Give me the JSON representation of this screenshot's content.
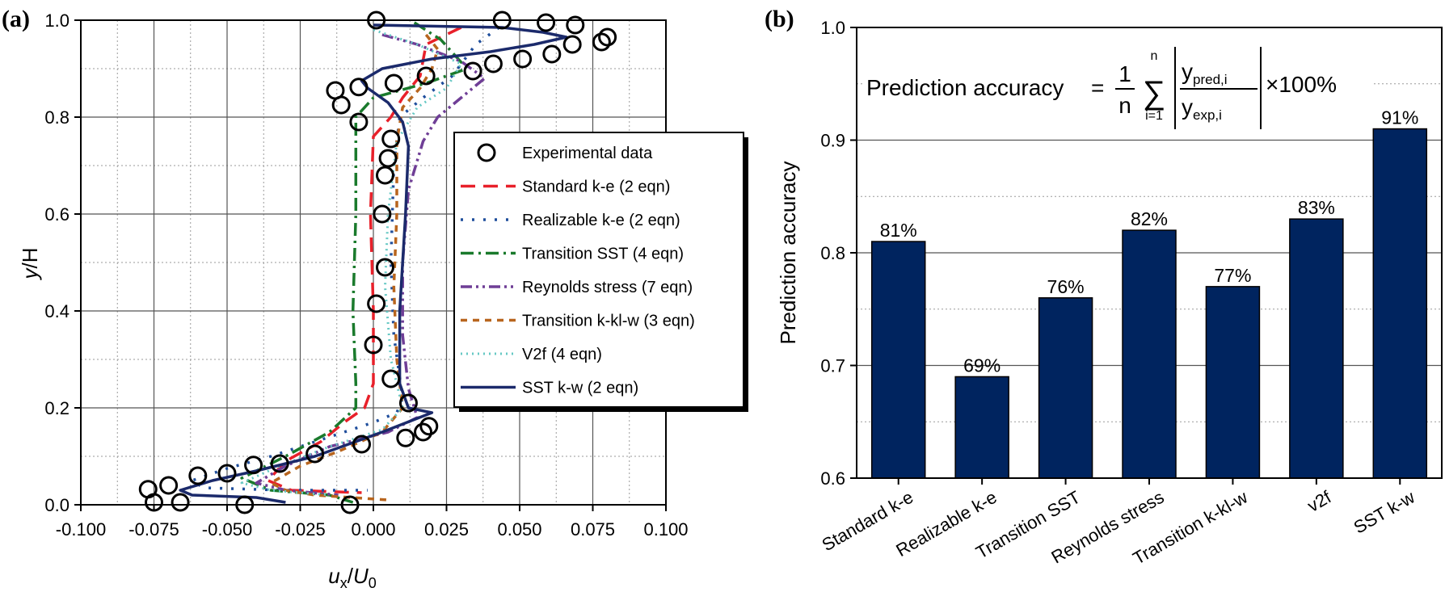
{
  "chart_data": [
    {
      "panel_label": "(a)",
      "type": "line",
      "xlabel_main": "u",
      "xlabel_sub": "x",
      "xlabel_sep": "/",
      "xlabel_main2": "U",
      "xlabel_sub2": "0",
      "ylabel_main": "y",
      "ylabel_rest": "/H",
      "xlim": [
        -0.1,
        0.1
      ],
      "ylim": [
        0.0,
        1.0
      ],
      "xticks": [
        -0.1,
        -0.075,
        -0.05,
        -0.025,
        0.0,
        0.025,
        0.05,
        0.075,
        0.1
      ],
      "xtick_labels": [
        "-0.100",
        "-0.075",
        "-0.050",
        "-0.025",
        "0.000",
        "0.025",
        "0.050",
        "0.075",
        "0.100"
      ],
      "yticks": [
        0.0,
        0.2,
        0.4,
        0.6,
        0.8,
        1.0
      ],
      "ytick_labels": [
        "0.0",
        "0.2",
        "0.4",
        "0.6",
        "0.8",
        "1.0"
      ],
      "grid": true,
      "legend_position": "right",
      "experimental": {
        "name": "Experimental data",
        "points": [
          [
            0.001,
            1.0
          ],
          [
            0.044,
            1.0
          ],
          [
            0.059,
            0.995
          ],
          [
            0.069,
            0.99
          ],
          [
            0.08,
            0.965
          ],
          [
            0.078,
            0.955
          ],
          [
            0.068,
            0.95
          ],
          [
            0.061,
            0.93
          ],
          [
            0.051,
            0.92
          ],
          [
            0.041,
            0.91
          ],
          [
            0.034,
            0.895
          ],
          [
            0.018,
            0.885
          ],
          [
            0.007,
            0.87
          ],
          [
            -0.005,
            0.862
          ],
          [
            -0.013,
            0.855
          ],
          [
            -0.011,
            0.825
          ],
          [
            -0.005,
            0.79
          ],
          [
            0.006,
            0.755
          ],
          [
            0.005,
            0.715
          ],
          [
            0.004,
            0.68
          ],
          [
            0.003,
            0.6
          ],
          [
            0.004,
            0.49
          ],
          [
            0.001,
            0.415
          ],
          [
            0.0,
            0.33
          ],
          [
            0.006,
            0.26
          ],
          [
            0.012,
            0.21
          ],
          [
            0.019,
            0.162
          ],
          [
            0.017,
            0.15
          ],
          [
            0.011,
            0.138
          ],
          [
            -0.004,
            0.125
          ],
          [
            -0.02,
            0.105
          ],
          [
            -0.032,
            0.085
          ],
          [
            -0.041,
            0.082
          ],
          [
            -0.05,
            0.065
          ],
          [
            -0.06,
            0.06
          ],
          [
            -0.07,
            0.04
          ],
          [
            -0.077,
            0.032
          ],
          [
            -0.075,
            0.005
          ],
          [
            -0.066,
            0.005
          ],
          [
            -0.044,
            0.0
          ],
          [
            -0.008,
            0.0
          ]
        ]
      },
      "series": [
        {
          "name": "Standard k-e (2 eqn)",
          "color": "#e8202a",
          "dash": "18,10",
          "width": 3.5,
          "points": [
            [
              0.03,
              0.985
            ],
            [
              0.018,
              0.95
            ],
            [
              0.016,
              0.885
            ],
            [
              0.01,
              0.84
            ],
            [
              0.006,
              0.8
            ],
            [
              0.0,
              0.76
            ],
            [
              -0.001,
              0.6
            ],
            [
              0.0,
              0.4
            ],
            [
              0.0,
              0.25
            ],
            [
              -0.003,
              0.2
            ],
            [
              -0.01,
              0.17
            ],
            [
              -0.018,
              0.13
            ],
            [
              -0.03,
              0.09
            ],
            [
              -0.036,
              0.05
            ],
            [
              -0.028,
              0.03
            ],
            [
              -0.004,
              0.025
            ]
          ]
        },
        {
          "name": "Realizable k-e (2 eqn)",
          "color": "#1f4e9c",
          "dash": "3,11",
          "width": 3.5,
          "points": [
            [
              0.043,
              0.985
            ],
            [
              0.035,
              0.95
            ],
            [
              0.027,
              0.885
            ],
            [
              0.017,
              0.84
            ],
            [
              0.009,
              0.8
            ],
            [
              0.007,
              0.7
            ],
            [
              0.006,
              0.5
            ],
            [
              0.007,
              0.35
            ],
            [
              0.01,
              0.22
            ],
            [
              0.008,
              0.19
            ],
            [
              0.0,
              0.17
            ],
            [
              -0.02,
              0.13
            ],
            [
              -0.035,
              0.1
            ],
            [
              -0.05,
              0.075
            ],
            [
              -0.062,
              0.05
            ],
            [
              -0.058,
              0.035
            ],
            [
              -0.03,
              0.03
            ],
            [
              -0.002,
              0.03
            ]
          ]
        },
        {
          "name": "Transition SST (4 eqn)",
          "color": "#1a7a2c",
          "dash": "16,6,3,6",
          "width": 3.5,
          "points": [
            [
              0.014,
              0.995
            ],
            [
              0.023,
              0.96
            ],
            [
              0.032,
              0.9
            ],
            [
              0.018,
              0.87
            ],
            [
              0.0,
              0.84
            ],
            [
              -0.006,
              0.8
            ],
            [
              -0.006,
              0.6
            ],
            [
              -0.007,
              0.4
            ],
            [
              -0.006,
              0.25
            ],
            [
              -0.006,
              0.2
            ],
            [
              -0.015,
              0.15
            ],
            [
              -0.03,
              0.1
            ],
            [
              -0.045,
              0.055
            ],
            [
              -0.035,
              0.03
            ],
            [
              -0.015,
              0.02
            ],
            [
              -0.007,
              0.005
            ]
          ]
        },
        {
          "name": "Reynolds stress (7 eqn)",
          "color": "#6f3e96",
          "dash": "14,5,3,5,3,5",
          "width": 3.5,
          "points": [
            [
              0.003,
              0.97
            ],
            [
              0.015,
              0.95
            ],
            [
              0.03,
              0.915
            ],
            [
              0.038,
              0.88
            ],
            [
              0.03,
              0.84
            ],
            [
              0.022,
              0.8
            ],
            [
              0.017,
              0.75
            ],
            [
              0.012,
              0.65
            ],
            [
              0.01,
              0.5
            ],
            [
              0.01,
              0.35
            ],
            [
              0.012,
              0.24
            ],
            [
              0.015,
              0.18
            ],
            [
              0.005,
              0.15
            ],
            [
              -0.015,
              0.12
            ],
            [
              -0.03,
              0.08
            ],
            [
              -0.04,
              0.045
            ],
            [
              -0.03,
              0.03
            ],
            [
              -0.012,
              0.02
            ]
          ]
        },
        {
          "name": "Transition k-kl-w (3 eqn)",
          "color": "#b8651e",
          "dash": "8,7",
          "width": 3.5,
          "points": [
            [
              0.018,
              0.97
            ],
            [
              0.022,
              0.94
            ],
            [
              0.02,
              0.9
            ],
            [
              0.016,
              0.86
            ],
            [
              0.01,
              0.82
            ],
            [
              0.008,
              0.75
            ],
            [
              0.008,
              0.6
            ],
            [
              0.007,
              0.45
            ],
            [
              0.008,
              0.3
            ],
            [
              0.01,
              0.2
            ],
            [
              0.003,
              0.15
            ],
            [
              -0.012,
              0.11
            ],
            [
              -0.025,
              0.08
            ],
            [
              -0.035,
              0.045
            ],
            [
              -0.03,
              0.03
            ],
            [
              -0.02,
              0.02
            ],
            [
              0.005,
              0.01
            ]
          ]
        },
        {
          "name": "V2f (4 eqn)",
          "color": "#66c8c4",
          "dash": "2,5",
          "width": 3.0,
          "points": [
            [
              0.0,
              0.98
            ],
            [
              0.015,
              0.95
            ],
            [
              0.03,
              0.91
            ],
            [
              0.025,
              0.86
            ],
            [
              0.015,
              0.82
            ],
            [
              0.008,
              0.75
            ],
            [
              0.005,
              0.6
            ],
            [
              0.004,
              0.45
            ],
            [
              0.006,
              0.3
            ],
            [
              0.01,
              0.2
            ],
            [
              0.003,
              0.155
            ],
            [
              -0.015,
              0.12
            ],
            [
              -0.032,
              0.08
            ],
            [
              -0.045,
              0.045
            ],
            [
              -0.035,
              0.03
            ],
            [
              -0.015,
              0.02
            ]
          ]
        },
        {
          "name": "SST k-w (2 eqn)",
          "color": "#1b2a6b",
          "dash": "",
          "width": 3.5,
          "points": [
            [
              0.0,
              0.99
            ],
            [
              0.044,
              0.985
            ],
            [
              0.058,
              0.975
            ],
            [
              0.066,
              0.965
            ],
            [
              0.055,
              0.95
            ],
            [
              0.04,
              0.935
            ],
            [
              0.02,
              0.92
            ],
            [
              0.003,
              0.9
            ],
            [
              -0.004,
              0.875
            ],
            [
              -0.002,
              0.86
            ],
            [
              0.005,
              0.83
            ],
            [
              0.01,
              0.79
            ],
            [
              0.012,
              0.74
            ],
            [
              0.011,
              0.6
            ],
            [
              0.009,
              0.4
            ],
            [
              0.009,
              0.25
            ],
            [
              0.012,
              0.2
            ],
            [
              0.02,
              0.19
            ],
            [
              0.003,
              0.15
            ],
            [
              -0.02,
              0.1
            ],
            [
              -0.04,
              0.07
            ],
            [
              -0.055,
              0.05
            ],
            [
              -0.066,
              0.03
            ],
            [
              -0.062,
              0.02
            ],
            [
              -0.04,
              0.015
            ],
            [
              -0.03,
              0.005
            ]
          ]
        }
      ]
    },
    {
      "panel_label": "(b)",
      "type": "bar",
      "categories": [
        "Standard k-e",
        "Realizable k-e",
        "Transition SST",
        "Reynolds stress",
        "Transition k-kl-w",
        "v2f",
        "SST k-w"
      ],
      "values": [
        0.81,
        0.69,
        0.76,
        0.82,
        0.77,
        0.83,
        0.91
      ],
      "data_labels": [
        "81%",
        "69%",
        "76%",
        "82%",
        "77%",
        "83%",
        "91%"
      ],
      "bar_color": "#00245f",
      "ylabel": "Prediction accuracy",
      "ylim": [
        0.6,
        1.0
      ],
      "yticks": [
        0.6,
        0.7,
        0.8,
        0.9,
        1.0
      ],
      "ytick_labels": [
        "0.6",
        "0.7",
        "0.8",
        "0.9",
        "1.0"
      ],
      "grid": true,
      "formula": {
        "lhs": "Prediction accuracy",
        "eq": "=",
        "numerator": "1",
        "denominator": "n",
        "sum_top": "n",
        "sum_bottom": "i=1",
        "sigma": "∑",
        "num_var": "y",
        "num_sub": "pred,i",
        "den_var": "y",
        "den_sub": "exp,i",
        "times": "×100%"
      }
    }
  ]
}
